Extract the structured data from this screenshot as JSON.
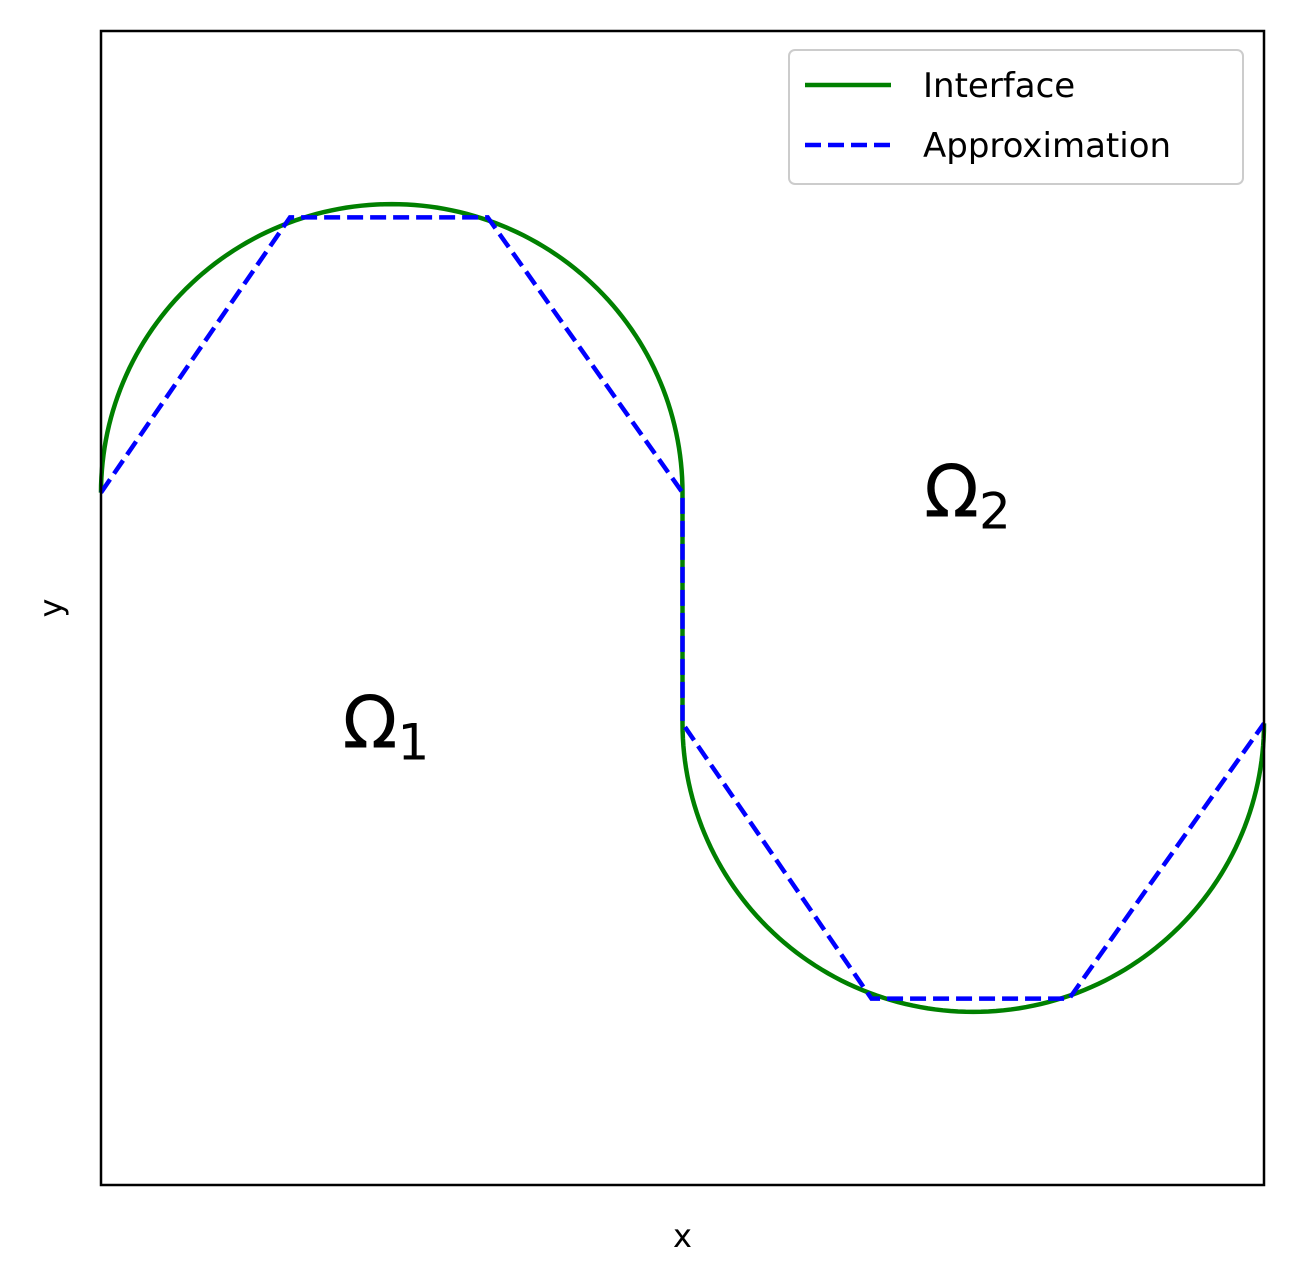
{
  "chart_data": {
    "type": "line",
    "title": "",
    "xlabel": "x",
    "ylabel": "y",
    "xlim": [
      0,
      1
    ],
    "ylim": [
      -0.5,
      0.5
    ],
    "ticks_shown": false,
    "grid": false,
    "legend_position": "top-right",
    "series": [
      {
        "name": "Interface",
        "color": "#008000",
        "style": "solid",
        "description": "upper semicircle centered (0.25, 0.1) radius 0.25, vertical segment at x=0.5, lower semicircle centered (0.75, -0.1) radius 0.25",
        "x": [
          0,
          0.0337,
          0.125,
          0.25,
          0.375,
          0.4663,
          0.5,
          0.5,
          0.5337,
          0.625,
          0.75,
          0.875,
          0.9663,
          1
        ],
        "y": [
          0.1,
          0.225,
          0.3165,
          0.35,
          0.3165,
          0.225,
          0.1,
          -0.1,
          -0.225,
          -0.3165,
          -0.35,
          -0.3165,
          -0.225,
          -0.1
        ]
      },
      {
        "name": "Approximation",
        "color": "#0000ff",
        "style": "dashed",
        "x": [
          0,
          0.1625,
          0.3325,
          0.5,
          0.5,
          0.6625,
          0.8325,
          1
        ],
        "y": [
          0.1,
          0.3385,
          0.3385,
          0.1,
          -0.1,
          -0.3385,
          -0.3385,
          -0.1
        ]
      }
    ],
    "annotations": [
      {
        "label": "Ω",
        "sub": "1",
        "x": 0.245,
        "y": -0.1
      },
      {
        "label": "Ω",
        "sub": "2",
        "x": 0.745,
        "y": 0.1
      }
    ]
  }
}
